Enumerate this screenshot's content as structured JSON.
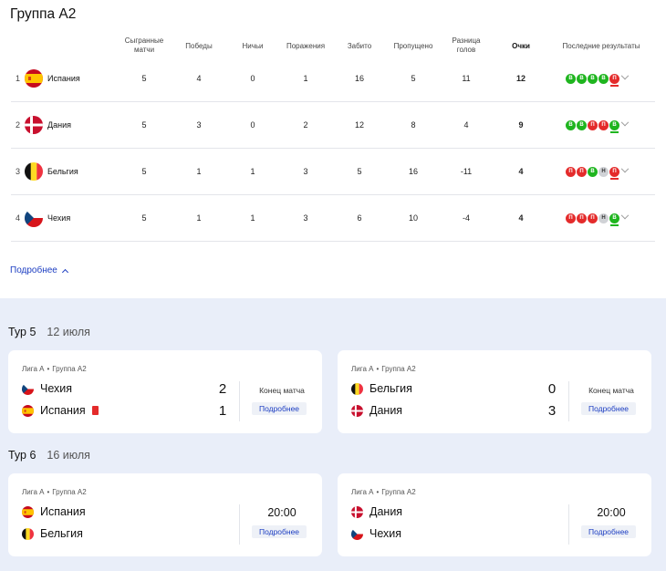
{
  "group_title": "Группа A2",
  "columns": {
    "played": [
      "Сыгранные",
      "матчи"
    ],
    "wins": "Победы",
    "draws": "Ничьи",
    "losses": "Поражения",
    "goals_for": "Забито",
    "goals_against": "Пропущено",
    "diff": [
      "Разница",
      "голов"
    ],
    "points": "Очки",
    "form": "Последние результаты"
  },
  "standings": [
    {
      "rank": "1",
      "team": "Испания",
      "flag": "spain-flag-icon",
      "played": "5",
      "wins": "4",
      "draws": "0",
      "losses": "1",
      "goals_for": "16",
      "goals_against": "5",
      "diff": "11",
      "points": "12",
      "form": [
        "В",
        "В",
        "В",
        "В",
        "П"
      ]
    },
    {
      "rank": "2",
      "team": "Дания",
      "flag": "denmark-flag-icon",
      "played": "5",
      "wins": "3",
      "draws": "0",
      "losses": "2",
      "goals_for": "12",
      "goals_against": "8",
      "diff": "4",
      "points": "9",
      "form": [
        "В",
        "В",
        "П",
        "П",
        "В"
      ]
    },
    {
      "rank": "3",
      "team": "Бельгия",
      "flag": "belgium-flag-icon",
      "played": "5",
      "wins": "1",
      "draws": "1",
      "losses": "3",
      "goals_for": "5",
      "goals_against": "16",
      "diff": "-11",
      "points": "4",
      "form": [
        "П",
        "П",
        "В",
        "Н",
        "П"
      ]
    },
    {
      "rank": "4",
      "team": "Чехия",
      "flag": "czech-flag-icon",
      "played": "5",
      "wins": "1",
      "draws": "1",
      "losses": "3",
      "goals_for": "6",
      "goals_against": "10",
      "diff": "-4",
      "points": "4",
      "form": [
        "П",
        "П",
        "П",
        "Н",
        "В"
      ]
    }
  ],
  "more_link": "Подробнее",
  "rounds": [
    {
      "title": "Тур 5",
      "date": "12 июля",
      "matches": [
        {
          "league": "Лига A",
          "group": "Группа A2",
          "home": "Чехия",
          "away": "Испания",
          "home_score": "2",
          "away_score": "1",
          "status": "Конец матча",
          "button": "Подробнее",
          "red_card": "away"
        },
        {
          "league": "Лига A",
          "group": "Группа A2",
          "home": "Бельгия",
          "away": "Дания",
          "home_score": "0",
          "away_score": "3",
          "status": "Конец матча",
          "button": "Подробнее"
        }
      ]
    },
    {
      "title": "Тур 6",
      "date": "16 июля",
      "matches": [
        {
          "league": "Лига A",
          "group": "Группа A2",
          "home": "Испания",
          "away": "Бельгия",
          "time": "20:00",
          "button": "Подробнее"
        },
        {
          "league": "Лига A",
          "group": "Группа A2",
          "home": "Дания",
          "away": "Чехия",
          "time": "20:00",
          "button": "Подробнее"
        }
      ]
    }
  ],
  "colors": {
    "win": "#1fb51f",
    "loss": "#e42b2b",
    "draw": "#d0d2d6",
    "link": "#1d3ec2",
    "bg_bottom": "#e9eef9"
  }
}
